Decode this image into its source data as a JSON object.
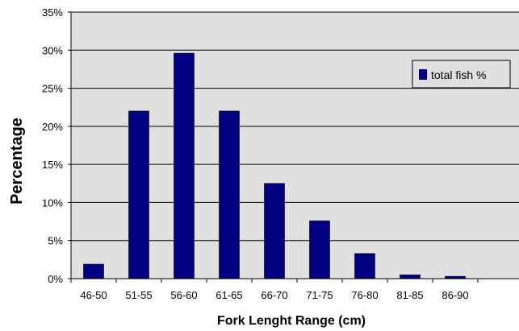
{
  "chart_data": {
    "type": "bar",
    "categories": [
      "46-50",
      "51-55",
      "56-60",
      "61-65",
      "66-70",
      "71-75",
      "76-80",
      "81-85",
      "86-90"
    ],
    "series": [
      {
        "name": "total fish %",
        "values": [
          1.9,
          22.0,
          29.6,
          22.0,
          12.5,
          7.6,
          3.3,
          0.5,
          0.3
        ],
        "color": "#000080"
      }
    ],
    "ylim": [
      0,
      35
    ],
    "yticks": [
      0,
      5,
      10,
      15,
      20,
      25,
      30,
      35
    ],
    "ytick_suffix": "%",
    "ylabel": "Percentage",
    "xlabel": "Fork Lenght Range (cm)",
    "grid": true,
    "legend_position": "top-right",
    "plot_background": "#e0e0e0",
    "bar_color": "#000080"
  }
}
